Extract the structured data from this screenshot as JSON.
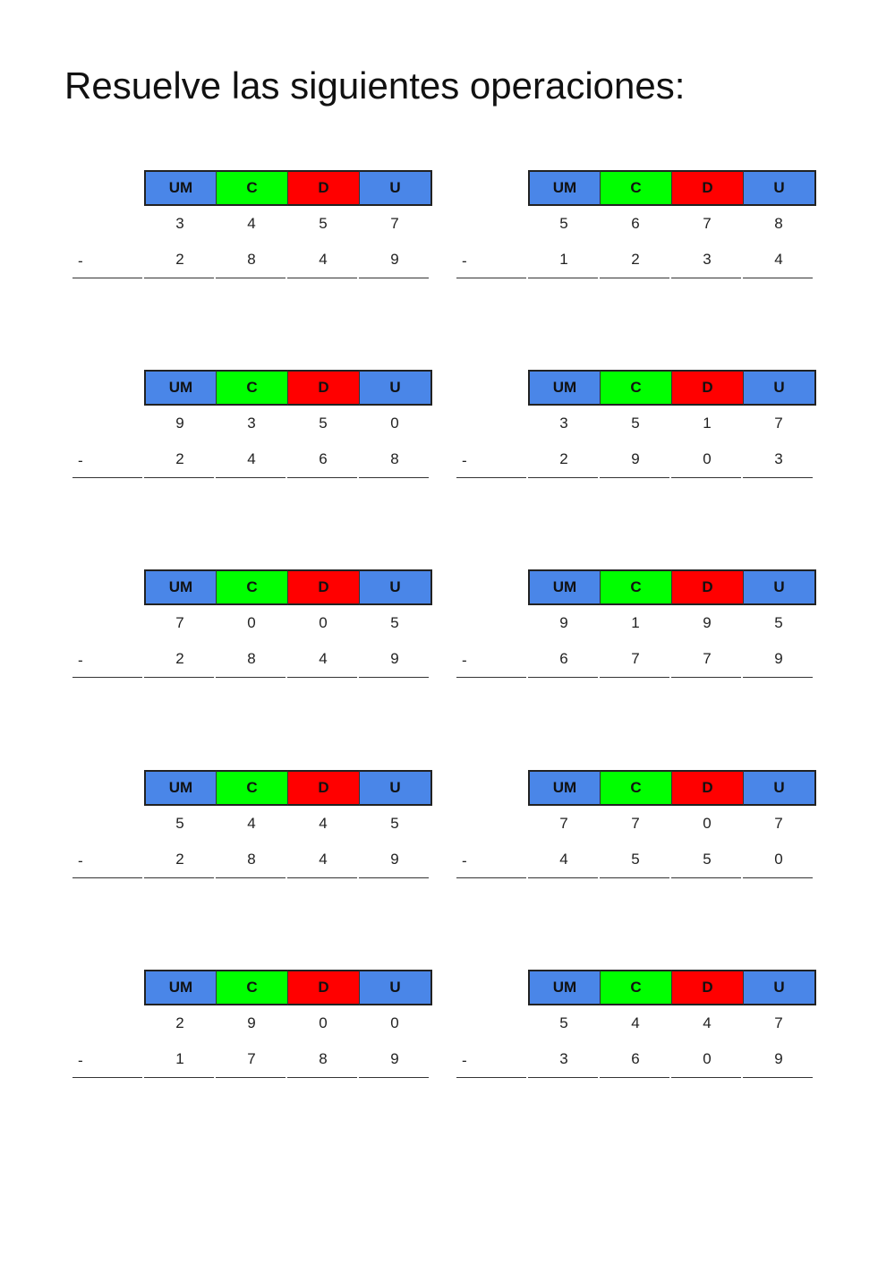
{
  "title": "Resuelve las siguientes operaciones:",
  "headers": [
    "UM",
    "C",
    "D",
    "U"
  ],
  "header_colors": [
    "#4a86e8",
    "#00ff00",
    "#ff0000",
    "#4a86e8"
  ],
  "minus_sign": "-",
  "problems": [
    {
      "top": [
        "3",
        "4",
        "5",
        "7"
      ],
      "bottom": [
        "2",
        "8",
        "4",
        "9"
      ]
    },
    {
      "top": [
        "5",
        "6",
        "7",
        "8"
      ],
      "bottom": [
        "1",
        "2",
        "3",
        "4"
      ]
    },
    {
      "top": [
        "9",
        "3",
        "5",
        "0"
      ],
      "bottom": [
        "2",
        "4",
        "6",
        "8"
      ]
    },
    {
      "top": [
        "3",
        "5",
        "1",
        "7"
      ],
      "bottom": [
        "2",
        "9",
        "0",
        "3"
      ]
    },
    {
      "top": [
        "7",
        "0",
        "0",
        "5"
      ],
      "bottom": [
        "2",
        "8",
        "4",
        "9"
      ]
    },
    {
      "top": [
        "9",
        "1",
        "9",
        "5"
      ],
      "bottom": [
        "6",
        "7",
        "7",
        "9"
      ]
    },
    {
      "top": [
        "5",
        "4",
        "4",
        "5"
      ],
      "bottom": [
        "2",
        "8",
        "4",
        "9"
      ]
    },
    {
      "top": [
        "7",
        "7",
        "0",
        "7"
      ],
      "bottom": [
        "4",
        "5",
        "5",
        "0"
      ]
    },
    {
      "top": [
        "2",
        "9",
        "0",
        "0"
      ],
      "bottom": [
        "1",
        "7",
        "8",
        "9"
      ]
    },
    {
      "top": [
        "5",
        "4",
        "4",
        "7"
      ],
      "bottom": [
        "3",
        "6",
        "0",
        "9"
      ]
    }
  ]
}
